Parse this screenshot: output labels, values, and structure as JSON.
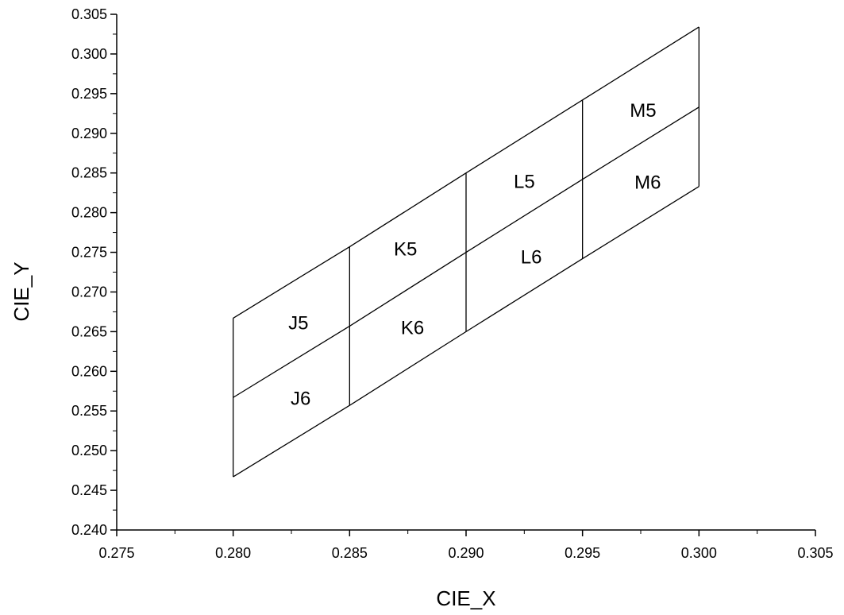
{
  "chart_data": {
    "type": "diagram",
    "title": "",
    "xlabel": "CIE_X",
    "ylabel": "CIE_Y",
    "xlim": [
      0.275,
      0.305
    ],
    "ylim": [
      0.24,
      0.305
    ],
    "x_ticks": [
      "0.275",
      "0.280",
      "0.285",
      "0.290",
      "0.295",
      "0.300",
      "0.305"
    ],
    "y_ticks": [
      "0.240",
      "0.245",
      "0.250",
      "0.255",
      "0.260",
      "0.265",
      "0.270",
      "0.275",
      "0.280",
      "0.285",
      "0.290",
      "0.295",
      "0.300",
      "0.305"
    ],
    "grid": false,
    "legend": "none",
    "grid_x": [
      0.28,
      0.285,
      0.29,
      0.295,
      0.3
    ],
    "row_top": [
      0.2667,
      0.2757,
      0.285,
      0.2942,
      0.3034
    ],
    "row_mid": [
      0.2567,
      0.2657,
      0.275,
      0.2842,
      0.2933
    ],
    "row_bottom": [
      0.2467,
      0.2557,
      0.265,
      0.2742,
      0.2833
    ],
    "bins": [
      {
        "label": "J5",
        "x": 0.2828,
        "y": 0.2662
      },
      {
        "label": "J6",
        "x": 0.2829,
        "y": 0.2567
      },
      {
        "label": "K5",
        "x": 0.2874,
        "y": 0.2755
      },
      {
        "label": "K6",
        "x": 0.2877,
        "y": 0.2656
      },
      {
        "label": "L5",
        "x": 0.2925,
        "y": 0.284
      },
      {
        "label": "L6",
        "x": 0.2928,
        "y": 0.2745
      },
      {
        "label": "M5",
        "x": 0.2976,
        "y": 0.293
      },
      {
        "label": "M6",
        "x": 0.2978,
        "y": 0.2839
      }
    ],
    "line_color": "#000000"
  }
}
